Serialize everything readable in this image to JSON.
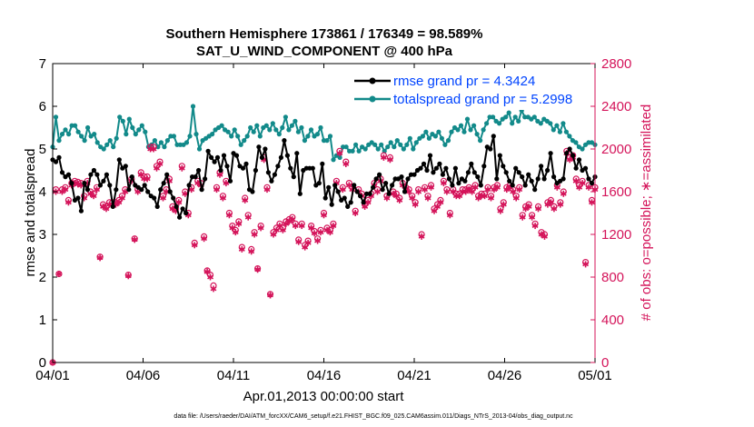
{
  "chart_data": {
    "type": "line",
    "title_line1": "Southern Hemisphere 173861 / 176349 = 98.589%",
    "title_line2": "SAT_U_WIND_COMPONENT @ 400 hPa",
    "xlabel": "Apr.01,2013 00:00:00 start",
    "ylabel_left": "rmse and totalspread",
    "ylabel_right": "# of obs: o=possible; ∗=assimilated",
    "footer": "data file: /Users/raeder/DAI/ATM_forcXX/CAM6_setup/f.e21.FHIST_BGC.f09_025.CAM6assim.011/Diags_NTrS_2013-04/obs_diag_output.nc",
    "x_range": [
      0,
      30
    ],
    "x_ticks": [
      0,
      5,
      10,
      15,
      20,
      25,
      30
    ],
    "x_tick_labels": [
      "04/01",
      "04/06",
      "04/11",
      "04/16",
      "04/21",
      "04/26",
      "05/01"
    ],
    "ylim_left": [
      0,
      7
    ],
    "y_ticks_left": [
      "0",
      "1",
      "2",
      "3",
      "4",
      "5",
      "6",
      "7"
    ],
    "ylim_right": [
      0,
      2800
    ],
    "y_ticks_right": [
      "0",
      "400",
      "800",
      "1200",
      "1600",
      "2000",
      "2400",
      "2800"
    ],
    "colors": {
      "rmse": "#000000",
      "spread": "#128a8a",
      "obs": "#d4145a",
      "legend_text": "#0044ff"
    },
    "series": [
      {
        "name": "rmse grand pr = 4.3424",
        "values": [
          4.75,
          4.7,
          4.8,
          4.45,
          4.35,
          4.4,
          4.2,
          3.8,
          3.85,
          3.55,
          4.2,
          4.05,
          4.4,
          4.5,
          4.4,
          4.15,
          4.25,
          4.4,
          4.15,
          3.65,
          4.05,
          4.75,
          4.55,
          4.6,
          4.05,
          4.35,
          4.15,
          4.1,
          4.05,
          4.15,
          4.0,
          3.9,
          3.85,
          3.65,
          4.05,
          4.2,
          4.4,
          4.0,
          3.85,
          3.65,
          3.4,
          3.6,
          3.5,
          4.15,
          4.35,
          4.35,
          4.5,
          4.05,
          4.3,
          4.95,
          4.8,
          4.7,
          4.8,
          4.5,
          4.85,
          4.6,
          4.25,
          4.9,
          4.85,
          4.6,
          4.55,
          4.65,
          4.05,
          4.0,
          4.5,
          5.05,
          4.8,
          5.0,
          4.45,
          4.25,
          4.4,
          4.6,
          4.8,
          5.2,
          4.85,
          4.55,
          4.35,
          4.9,
          3.95,
          4.5,
          4.55,
          4.55,
          4.55,
          4.15,
          4.2,
          4.65,
          3.85,
          4.1,
          3.7,
          4.15,
          4.0,
          3.8,
          3.85,
          3.65,
          3.75,
          4.15,
          4.0,
          3.9,
          3.75,
          3.95,
          3.95,
          4.1,
          4.3,
          4.4,
          4.05,
          4.2,
          3.95,
          4.15,
          4.3,
          4.3,
          4.35,
          4.0,
          4.3,
          4.4,
          4.4,
          4.5,
          4.55,
          4.65,
          4.5,
          4.85,
          4.45,
          4.55,
          4.65,
          4.4,
          4.55,
          4.3,
          4.15,
          4.55,
          4.2,
          4.3,
          4.25,
          4.45,
          4.65,
          4.45,
          4.35,
          4.15,
          4.6,
          5.05,
          5.0,
          5.3,
          4.3,
          4.85,
          4.6,
          4.45,
          4.25,
          4.15,
          4.55,
          4.45,
          4.35,
          4.15,
          4.4,
          4.25,
          4.05,
          4.3,
          4.6,
          4.3,
          4.5,
          4.9,
          4.35,
          4.2,
          4.25,
          4.3,
          4.9,
          5.0,
          4.85,
          4.55,
          4.75,
          4.5,
          4.55,
          4.3,
          4.2,
          4.35
        ]
      },
      {
        "name": "totalspread grand pr = 5.2998",
        "values": [
          5.05,
          5.75,
          5.2,
          5.35,
          5.45,
          5.35,
          5.55,
          5.55,
          5.4,
          5.3,
          5.2,
          5.5,
          5.3,
          5.35,
          5.15,
          5.05,
          5.0,
          5.1,
          5.2,
          5.05,
          5.25,
          5.75,
          5.65,
          5.35,
          5.7,
          5.5,
          5.35,
          5.45,
          5.55,
          5.4,
          5.05,
          5.1,
          5.2,
          5.05,
          5.15,
          5.05,
          5.2,
          5.3,
          5.3,
          5.1,
          5.1,
          5.1,
          5.15,
          5.3,
          6.0,
          5.35,
          5.0,
          5.2,
          5.25,
          5.3,
          5.35,
          5.45,
          5.5,
          5.55,
          5.45,
          5.4,
          5.3,
          5.45,
          5.3,
          5.1,
          5.2,
          5.3,
          5.5,
          5.4,
          5.55,
          5.3,
          5.5,
          5.55,
          5.45,
          5.6,
          5.45,
          5.35,
          5.5,
          5.75,
          5.45,
          5.55,
          5.65,
          5.4,
          5.5,
          5.2,
          5.3,
          5.45,
          5.3,
          5.35,
          5.5,
          5.2,
          5.2,
          5.3,
          4.75,
          4.85,
          4.8,
          5.05,
          5.05,
          4.95,
          4.95,
          5.1,
          4.95,
          5.05,
          5.0,
          5.1,
          5.15,
          5.1,
          5.0,
          5.1,
          4.95,
          5.05,
          5.15,
          5.05,
          5.2,
          5.1,
          5.0,
          5.1,
          5.25,
          5.0,
          5.15,
          5.25,
          5.3,
          5.4,
          5.25,
          5.35,
          5.3,
          5.4,
          5.25,
          5.1,
          5.2,
          5.4,
          5.5,
          5.45,
          5.55,
          5.4,
          5.7,
          5.45,
          5.55,
          5.35,
          5.2,
          5.45,
          5.6,
          5.75,
          5.75,
          5.65,
          5.6,
          5.7,
          5.75,
          5.85,
          5.6,
          5.75,
          5.65,
          5.9,
          5.75,
          5.75,
          5.7,
          5.75,
          5.65,
          5.6,
          5.7,
          5.65,
          5.6,
          5.45,
          5.55,
          5.4,
          5.6,
          5.4,
          5.3,
          5.2,
          5.15,
          5.05,
          5.0,
          5.1,
          5.15,
          5.15,
          5.1
        ]
      },
      {
        "name": "obs_possible",
        "values": [
          0,
          1620,
          830,
          1620,
          1640,
          1520,
          1680,
          1700,
          1690,
          1680,
          1560,
          1700,
          1600,
          1580,
          1640,
          990,
          1480,
          1460,
          1500,
          1500,
          1500,
          1520,
          1560,
          1620,
          820,
          1720,
          1160,
          1620,
          1780,
          1740,
          1740,
          2020,
          2020,
          1840,
          1880,
          1560,
          1620,
          1720,
          1460,
          1440,
          1520,
          1840,
          1600,
          1400,
          1640,
          1120,
          1700,
          1680,
          1180,
          860,
          820,
          720,
          1640,
          1780,
          1560,
          1700,
          1400,
          1280,
          1240,
          1320,
          1080,
          1540,
          1380,
          1060,
          1220,
          880,
          1280,
          1920,
          1640,
          640,
          1220,
          1260,
          1300,
          1260,
          1320,
          1340,
          1360,
          1300,
          1150,
          1300,
          1100,
          1140,
          1280,
          1230,
          1160,
          1240,
          1400,
          1260,
          1240,
          1300,
          1700,
          1980,
          1640,
          1880,
          1680,
          1640,
          1420,
          1620,
          1580,
          1480,
          1520,
          1580,
          1680,
          1620,
          1720,
          1940,
          1560,
          1920,
          1600,
          1580,
          1540,
          1680,
          1640,
          1620,
          1560,
          1500,
          1620,
          1200,
          1640,
          1560,
          1660,
          1440,
          1480,
          1520,
          1700,
          1620,
          1400,
          1620,
          1580,
          1580,
          1620,
          1620,
          1640,
          1620,
          1660,
          1560,
          1580,
          1580,
          1640,
          1560,
          1640,
          1660,
          1440,
          1500,
          1640,
          1660,
          1620,
          1560,
          1640,
          1380,
          1460,
          1480,
          1380,
          1300,
          1460,
          1220,
          1200,
          1500,
          1520,
          1460,
          1660,
          1500,
          1600,
          1980,
          1920,
          1940,
          1720,
          1660,
          1700,
          940,
          1660,
          1520,
          1640
        ]
      },
      {
        "name": "obs_assimilated",
        "values": [
          0,
          1600,
          830,
          1600,
          1620,
          1500,
          1660,
          1680,
          1670,
          1660,
          1540,
          1680,
          1580,
          1560,
          1620,
          980,
          1460,
          1440,
          1480,
          1480,
          1480,
          1500,
          1540,
          1600,
          810,
          1700,
          1150,
          1600,
          1760,
          1720,
          1720,
          2000,
          2000,
          1820,
          1860,
          1540,
          1600,
          1700,
          1440,
          1420,
          1500,
          1820,
          1580,
          1380,
          1620,
          1100,
          1680,
          1660,
          1160,
          850,
          800,
          690,
          1620,
          1760,
          1540,
          1680,
          1380,
          1260,
          1220,
          1300,
          1060,
          1520,
          1360,
          1040,
          1200,
          870,
          1260,
          1900,
          1620,
          630,
          1200,
          1240,
          1280,
          1240,
          1300,
          1320,
          1340,
          1280,
          1130,
          1280,
          1080,
          1120,
          1260,
          1210,
          1140,
          1220,
          1380,
          1240,
          1220,
          1280,
          1680,
          1960,
          1620,
          1860,
          1660,
          1620,
          1400,
          1600,
          1560,
          1460,
          1500,
          1560,
          1660,
          1600,
          1700,
          1920,
          1540,
          1900,
          1580,
          1560,
          1520,
          1660,
          1620,
          1600,
          1540,
          1480,
          1600,
          1180,
          1620,
          1540,
          1640,
          1420,
          1460,
          1500,
          1680,
          1600,
          1380,
          1600,
          1560,
          1560,
          1600,
          1600,
          1620,
          1600,
          1640,
          1540,
          1560,
          1560,
          1620,
          1540,
          1620,
          1640,
          1420,
          1480,
          1620,
          1640,
          1600,
          1540,
          1620,
          1360,
          1440,
          1460,
          1360,
          1280,
          1440,
          1200,
          1180,
          1480,
          1500,
          1440,
          1640,
          1480,
          1580,
          1960,
          1900,
          1920,
          1700,
          1640,
          1680,
          920,
          1640,
          1500,
          1620
        ]
      }
    ]
  }
}
